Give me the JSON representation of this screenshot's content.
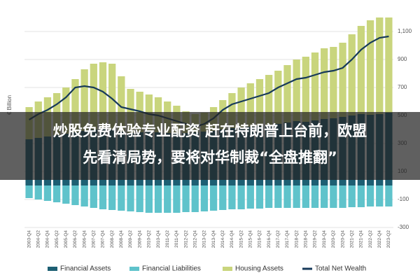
{
  "chart_data": {
    "type": "bar",
    "ylabel": "€ Billion",
    "categories": [
      "2003-Q4",
      "2004-Q2",
      "2004-Q4",
      "2005-Q2",
      "2005-Q4",
      "2006-Q2",
      "2006-Q4",
      "2007-Q2",
      "2007-Q4",
      "2008-Q2",
      "2008-Q4",
      "2009-Q2",
      "2009-Q4",
      "2010-Q2",
      "2010-Q4",
      "2011-Q2",
      "2011-Q4",
      "2012-Q2",
      "2012-Q4",
      "2013-Q2",
      "2013-Q4",
      "2014-Q2",
      "2014-Q4",
      "2015-Q2",
      "2015-Q4",
      "2016-Q2",
      "2016-Q4",
      "2017-Q2",
      "2017-Q4",
      "2018-Q2",
      "2018-Q4",
      "2019-Q2",
      "2019-Q4",
      "2020-Q2",
      "2020-Q4",
      "2021-Q2",
      "2021-Q4",
      "2022-Q2",
      "2022-Q4",
      "2023-Q2"
    ],
    "series": [
      {
        "name": "Financial Assets",
        "type": "bar",
        "color": "#1d5f73",
        "values": [
          330,
          340,
          350,
          360,
          370,
          380,
          390,
          400,
          405,
          400,
          385,
          375,
          380,
          385,
          380,
          375,
          370,
          375,
          380,
          385,
          390,
          400,
          410,
          415,
          420,
          425,
          430,
          440,
          450,
          460,
          455,
          465,
          475,
          480,
          490,
          500,
          510,
          505,
          510,
          520
        ]
      },
      {
        "name": "Financial Liabilities",
        "type": "bar",
        "color": "#5fc3cb",
        "values": [
          -90,
          -100,
          -110,
          -120,
          -130,
          -140,
          -150,
          -160,
          -170,
          -175,
          -180,
          -185,
          -190,
          -195,
          -195,
          -195,
          -195,
          -190,
          -190,
          -185,
          -180,
          -175,
          -170,
          -170,
          -165,
          -165,
          -160,
          -160,
          -160,
          -160,
          -160,
          -160,
          -160,
          -160,
          -160,
          -155,
          -155,
          -150,
          -150,
          -150
        ]
      },
      {
        "name": "Housing Assets",
        "type": "bar",
        "color": "#c9d57d",
        "values": [
          230,
          260,
          280,
          300,
          330,
          380,
          440,
          470,
          475,
          470,
          395,
          315,
          290,
          265,
          250,
          225,
          200,
          155,
          130,
          135,
          170,
          210,
          250,
          285,
          310,
          335,
          360,
          380,
          410,
          440,
          465,
          485,
          505,
          510,
          530,
          580,
          630,
          675,
          690,
          680
        ]
      },
      {
        "name": "Total Net Wealth",
        "type": "line",
        "color": "#173a5a",
        "values": [
          470,
          510,
          540,
          580,
          630,
          700,
          710,
          700,
          670,
          620,
          560,
          545,
          530,
          510,
          500,
          480,
          460,
          440,
          420,
          440,
          480,
          540,
          580,
          600,
          620,
          640,
          660,
          700,
          730,
          760,
          770,
          790,
          810,
          820,
          840,
          900,
          970,
          1020,
          1055,
          1065
        ]
      }
    ],
    "ylim": [
      -300,
      1200
    ],
    "yticks": [
      -300,
      -100,
      100,
      300,
      500,
      700,
      900,
      {
        "value": 1100,
        "label": "1,100"
      }
    ],
    "grid": true
  },
  "overlay": {
    "lines": [
      "炒股免费体验专业配资 赶在特朗普上台前，欧盟",
      "先看清局势，要将对华制裁“全盘推翻”"
    ]
  }
}
